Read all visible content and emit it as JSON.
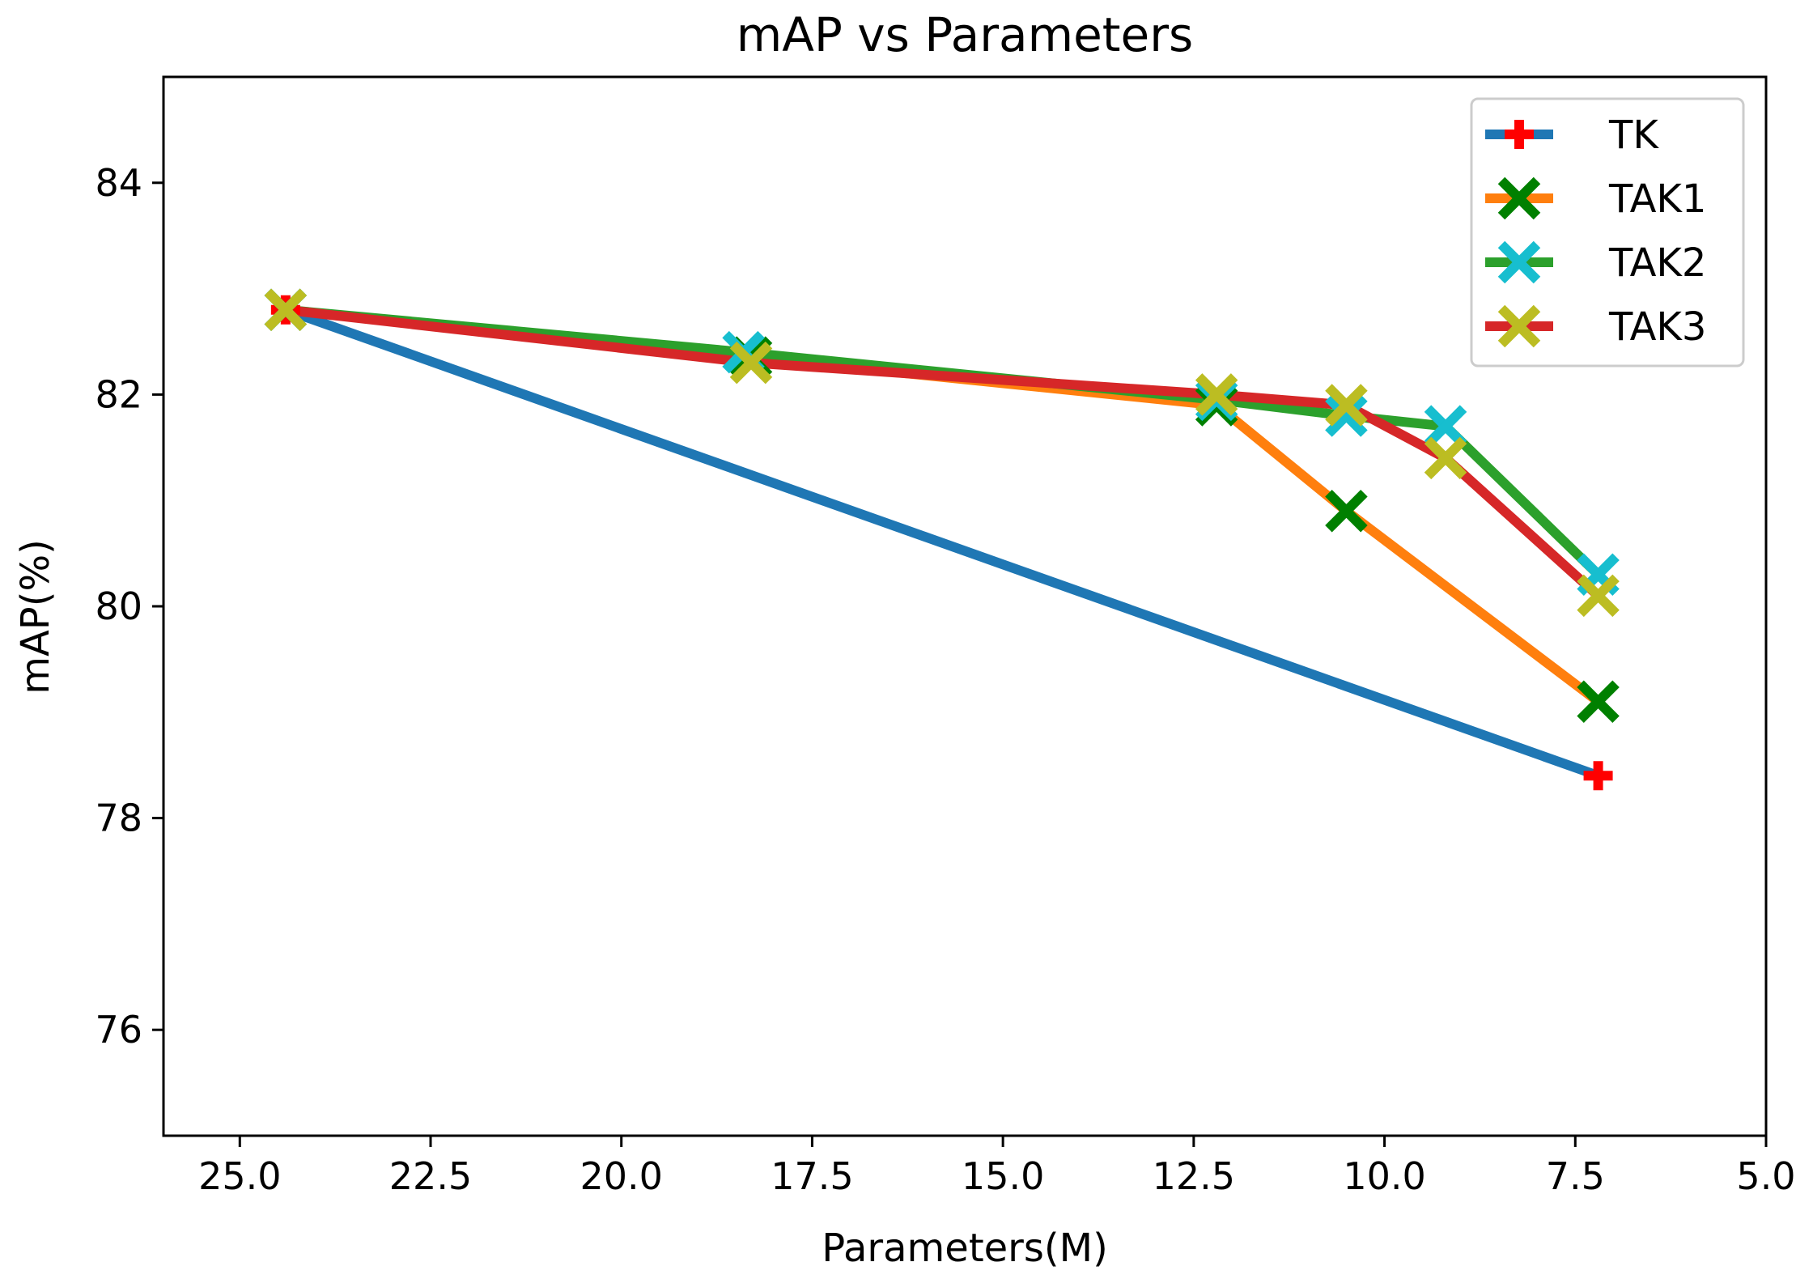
{
  "chart_data": {
    "type": "line",
    "title": "mAP vs Parameters",
    "xlabel": "Parameters(M)",
    "ylabel": "mAP(%)",
    "xlim": [
      26.0,
      5.0
    ],
    "ylim": [
      75.0,
      85.0
    ],
    "x_inverted": true,
    "x_ticks": [
      "25.0",
      "22.5",
      "20.0",
      "17.5",
      "15.0",
      "12.5",
      "10.0",
      "7.5",
      "5.0"
    ],
    "x_tick_values": [
      25.0,
      22.5,
      20.0,
      17.5,
      15.0,
      12.5,
      10.0,
      7.5,
      5.0
    ],
    "y_ticks": [
      "76",
      "78",
      "80",
      "82",
      "84"
    ],
    "y_tick_values": [
      76,
      78,
      80,
      82,
      84
    ],
    "legend_position": "top-right",
    "series": [
      {
        "name": "TK",
        "line_color": "#1f77b4",
        "marker": "plus",
        "marker_color": "#ff0000",
        "x": [
          24.4,
          7.2
        ],
        "y": [
          82.8,
          78.4
        ]
      },
      {
        "name": "TAK1",
        "line_color": "#ff7f0e",
        "marker": "x",
        "marker_color": "#008000",
        "x": [
          24.4,
          18.3,
          12.2,
          10.5,
          7.2
        ],
        "y": [
          82.8,
          82.35,
          81.9,
          80.9,
          79.1
        ]
      },
      {
        "name": "TAK2",
        "line_color": "#2ca02c",
        "marker": "x",
        "marker_color": "#17becf",
        "x": [
          24.4,
          18.4,
          12.2,
          10.5,
          9.2,
          7.2
        ],
        "y": [
          82.8,
          82.4,
          81.95,
          81.8,
          81.7,
          80.3
        ]
      },
      {
        "name": "TAK3",
        "line_color": "#d62728",
        "marker": "x",
        "marker_color": "#bcbd22",
        "x": [
          24.4,
          18.3,
          12.2,
          10.5,
          9.2,
          7.2
        ],
        "y": [
          82.8,
          82.3,
          82.0,
          81.9,
          81.4,
          80.1
        ]
      }
    ]
  }
}
